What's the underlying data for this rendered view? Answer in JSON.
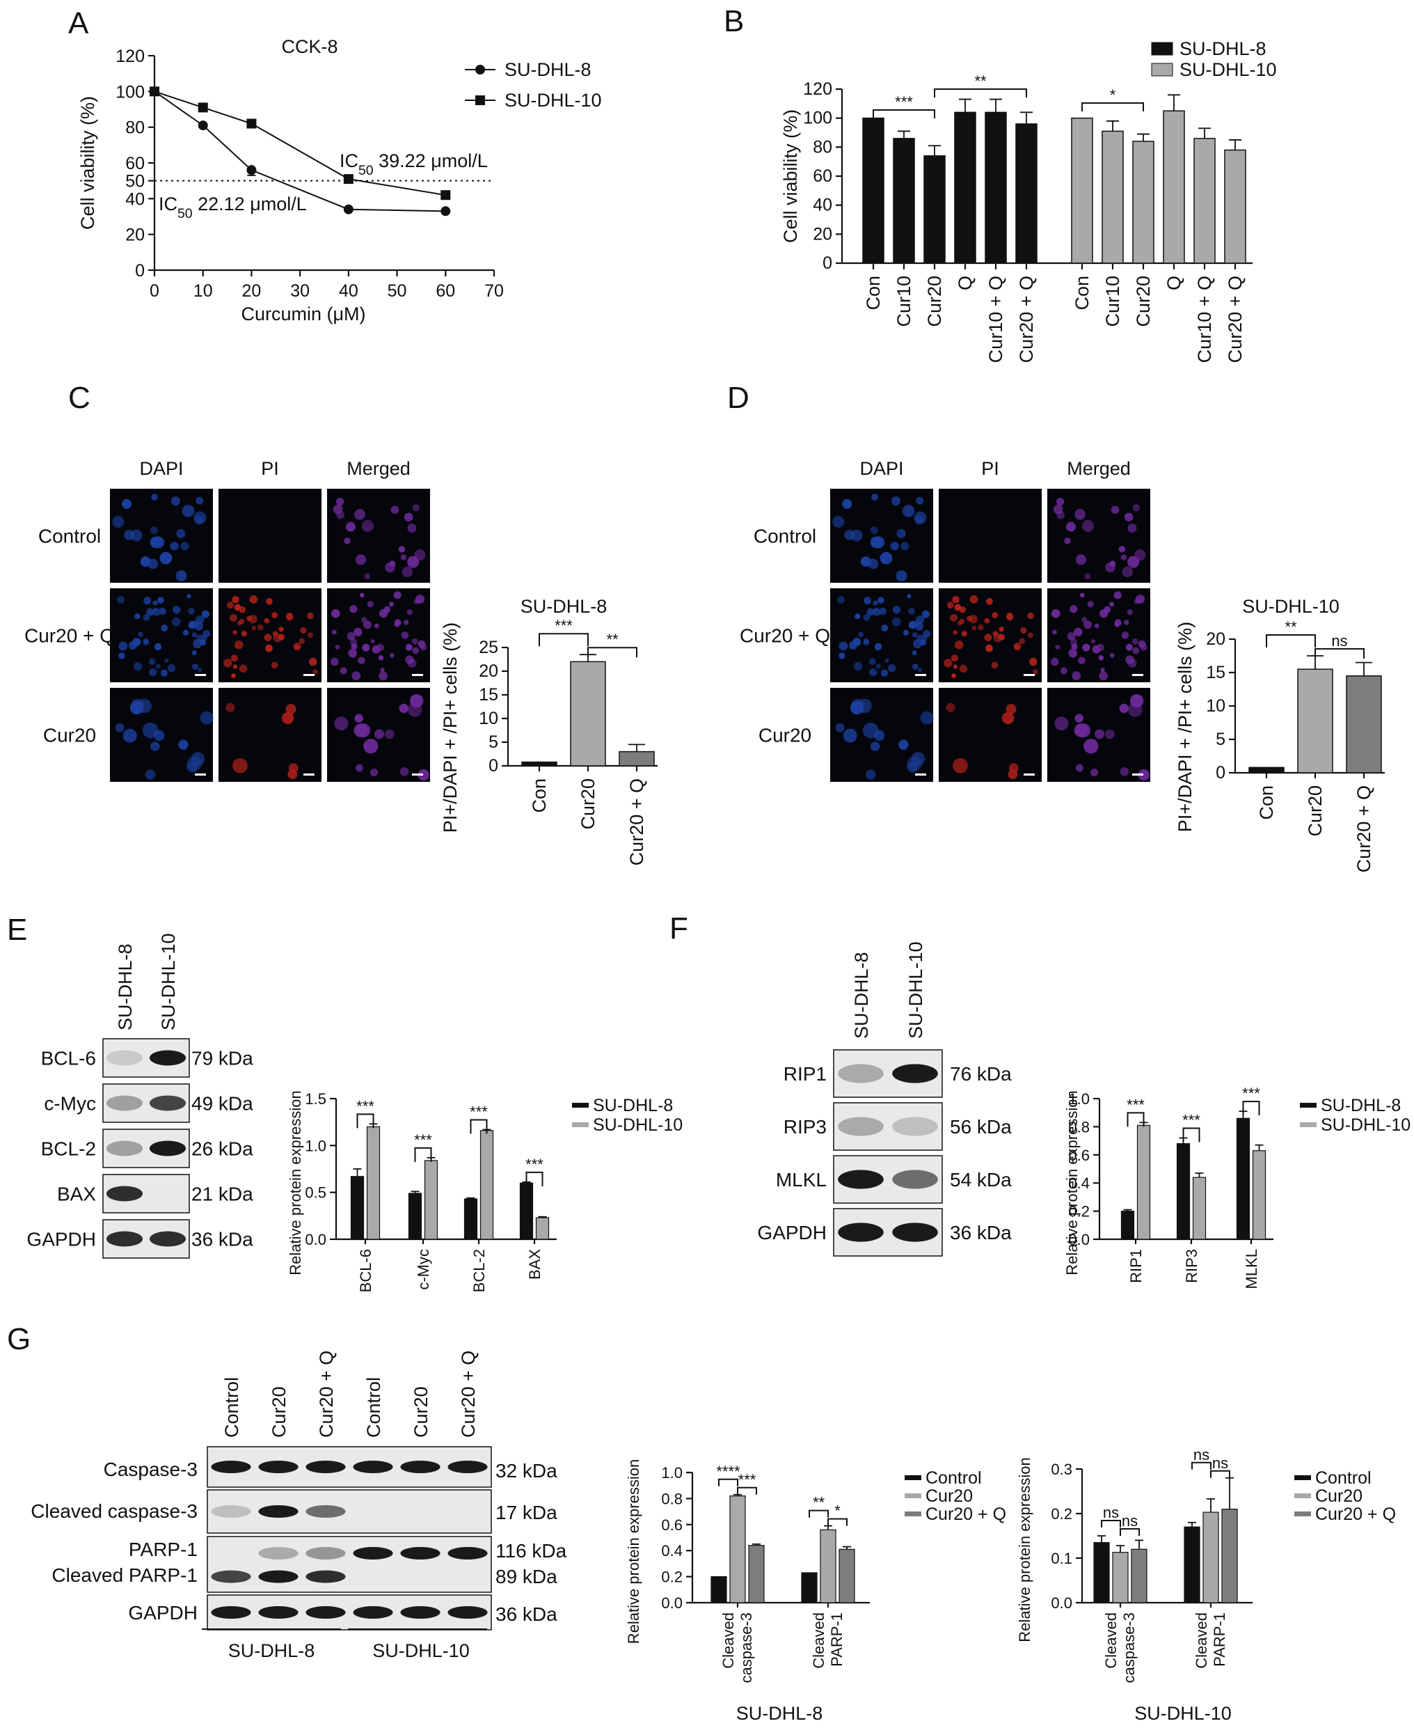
{
  "colors": {
    "black_bar": "#111111",
    "light_gray_bar": "#a9a9a9",
    "mid_gray_bar": "#7d7d7d",
    "dapi_blue": "#1b3f9e",
    "pi_red": "#b4221a",
    "merged_purple": "#6d2a9a",
    "blot_band": "#1a1a1a"
  },
  "panels": {
    "A": {
      "letter": "A",
      "chart_data": {
        "type": "line",
        "title": "CCK-8",
        "xlabel": "Curcumin (μM)",
        "ylabel": "Cell viability (%)",
        "xticks": [
          "0",
          "10",
          "20",
          "30",
          "40",
          "50",
          "60",
          "70"
        ],
        "yticks": [
          "0",
          "20",
          "40",
          "50",
          "60",
          "80",
          "100",
          "120"
        ],
        "xlim": [
          0,
          70
        ],
        "ylim": [
          0,
          120
        ],
        "reference_line_y": 50,
        "series": [
          {
            "name": "SU-DHL-8",
            "marker": "circle",
            "x": [
              0,
              10,
              20,
              40,
              60
            ],
            "y": [
              100,
              81,
              56,
              34,
              33
            ],
            "err": [
              0,
              1,
              3,
              1,
              1
            ]
          },
          {
            "name": "SU-DHL-10",
            "marker": "square",
            "x": [
              0,
              10,
              20,
              40,
              60
            ],
            "y": [
              100,
              91,
              82,
              51,
              42
            ],
            "err": [
              0,
              1,
              1,
              2,
              1
            ]
          }
        ],
        "annotations": [
          {
            "prefix": "IC",
            "sub": "50",
            "text": " 39.22 μmol/L"
          },
          {
            "prefix": "IC",
            "sub": "50",
            "text": " 22.12 μmol/L"
          }
        ]
      }
    },
    "B": {
      "letter": "B",
      "chart_data": {
        "type": "bar",
        "ylabel": "Cell viability (%)",
        "yticks": [
          "0",
          "20",
          "40",
          "60",
          "80",
          "100",
          "120"
        ],
        "ylim": [
          0,
          120
        ],
        "legend": [
          "SU-DHL-8",
          "SU-DHL-10"
        ],
        "categories": [
          "Con",
          "Cur10",
          "Cur20",
          "Q",
          "Cur10 + Q",
          "Cur20 + Q",
          "Con",
          "Cur10",
          "Cur20",
          "Q",
          "Cur10 + Q",
          "Cur20 + Q"
        ],
        "values": [
          100,
          86,
          74,
          104,
          104,
          96,
          100,
          91,
          84,
          105,
          86,
          78
        ],
        "errors": [
          0,
          5,
          7,
          9,
          9,
          8,
          0,
          7,
          5,
          11,
          7,
          7
        ],
        "series_index": [
          0,
          0,
          0,
          0,
          0,
          0,
          1,
          1,
          1,
          1,
          1,
          1
        ],
        "significance": [
          {
            "from": 0,
            "to": 2,
            "label": "***"
          },
          {
            "from": 2,
            "to": 5,
            "label": "**"
          },
          {
            "from": 6,
            "to": 8,
            "label": "*"
          }
        ]
      }
    },
    "C": {
      "letter": "C",
      "columns": [
        "DAPI",
        "PI",
        "Merged"
      ],
      "rows": [
        "Control",
        "Cur20 + Q",
        "Cur20"
      ],
      "chart_data": {
        "type": "bar",
        "title": "SU-DHL-8",
        "ylabel": "PI+/DAPI + /PI+ cells (%)",
        "yticks": [
          "0",
          "5",
          "10",
          "15",
          "20",
          "25"
        ],
        "ylim": [
          0,
          25
        ],
        "categories": [
          "Con",
          "Cur20",
          "Cur20 + Q"
        ],
        "values": [
          0.8,
          22,
          3
        ],
        "errors": [
          0,
          1.5,
          1.5
        ],
        "significance": [
          {
            "from": 0,
            "to": 1,
            "label": "***"
          },
          {
            "from": 1,
            "to": 2,
            "label": "**"
          }
        ]
      }
    },
    "D": {
      "letter": "D",
      "columns": [
        "DAPI",
        "PI",
        "Merged"
      ],
      "rows": [
        "Control",
        "Cur20 + Q",
        "Cur20"
      ],
      "chart_data": {
        "type": "bar",
        "title": "SU-DHL-10",
        "ylabel": "PI+/DAPI + /PI+ cells (%)",
        "yticks": [
          "0",
          "5",
          "10",
          "15",
          "20"
        ],
        "ylim": [
          0,
          20
        ],
        "categories": [
          "Con",
          "Cur20",
          "Cur20 + Q"
        ],
        "values": [
          0.8,
          15.5,
          14.5
        ],
        "errors": [
          0,
          2,
          2
        ],
        "significance": [
          {
            "from": 0,
            "to": 1,
            "label": "**"
          },
          {
            "from": 1,
            "to": 2,
            "label": "ns"
          }
        ]
      }
    },
    "E": {
      "letter": "E",
      "lanes": [
        "SU-DHL-8",
        "SU-DHL-10"
      ],
      "blots": [
        {
          "name": "BCL-6",
          "kda": "79 kDa",
          "band": [
            0.15,
            1.0
          ]
        },
        {
          "name": "c-Myc",
          "kda": "49 kDa",
          "band": [
            0.35,
            0.8
          ]
        },
        {
          "name": "BCL-2",
          "kda": "26 kDa",
          "band": [
            0.35,
            1.0
          ]
        },
        {
          "name": "BAX",
          "kda": "21 kDa",
          "band": [
            0.9,
            0.0
          ]
        },
        {
          "name": "GAPDH",
          "kda": "36 kDa",
          "band": [
            0.9,
            0.9
          ]
        }
      ],
      "chart_data": {
        "type": "bar",
        "ylabel": "Relative protein expression",
        "yticks": [
          "0.0",
          "0.5",
          "1.0",
          "1.5"
        ],
        "ylim": [
          0,
          1.5
        ],
        "categories": [
          "BCL-6",
          "c-Myc",
          "BCL-2",
          "BAX"
        ],
        "series": [
          {
            "name": "SU-DHL-8",
            "values": [
              0.67,
              0.49,
              0.43,
              0.6
            ],
            "errors": [
              0.08,
              0.02,
              0.01,
              0.01
            ]
          },
          {
            "name": "SU-DHL-10",
            "values": [
              1.2,
              0.84,
              1.16,
              0.23
            ],
            "errors": [
              0.03,
              0.03,
              0.01,
              0.01
            ]
          }
        ],
        "significance": [
          "***",
          "***",
          "***",
          "***"
        ]
      }
    },
    "F": {
      "letter": "F",
      "lanes": [
        "SU-DHL-8",
        "SU-DHL-10"
      ],
      "blots": [
        {
          "name": "RIP1",
          "kda": "76 kDa",
          "band": [
            0.3,
            1.0
          ]
        },
        {
          "name": "RIP3",
          "kda": "56 kDa",
          "band": [
            0.3,
            0.2
          ]
        },
        {
          "name": "MLKL",
          "kda": "54 kDa",
          "band": [
            1.0,
            0.6
          ]
        },
        {
          "name": "GAPDH",
          "kda": "36 kDa",
          "band": [
            1.0,
            1.0
          ]
        }
      ],
      "chart_data": {
        "type": "bar",
        "ylabel": "Relative protein expression",
        "yticks": [
          "0.0",
          "0.2",
          "0.4",
          "0.6",
          "0.8",
          "1.0"
        ],
        "ylim": [
          0,
          1.0
        ],
        "categories": [
          "RIP1",
          "RIP3",
          "MLKL"
        ],
        "series": [
          {
            "name": "SU-DHL-8",
            "values": [
              0.2,
              0.68,
              0.86
            ],
            "errors": [
              0.01,
              0.04,
              0.05
            ]
          },
          {
            "name": "SU-DHL-10",
            "values": [
              0.81,
              0.44,
              0.63
            ],
            "errors": [
              0.02,
              0.03,
              0.04
            ]
          }
        ],
        "significance": [
          "***",
          "***",
          "***"
        ]
      }
    },
    "G": {
      "letter": "G",
      "lanes": [
        "Control",
        "Cur20",
        "Cur20 + Q",
        "Control",
        "Cur20",
        "Cur20 + Q"
      ],
      "groups": [
        "SU-DHL-8",
        "SU-DHL-10"
      ],
      "blots": [
        {
          "name": "Caspase-3",
          "kda": "32 kDa",
          "band": [
            1,
            1,
            1,
            1,
            1,
            1
          ]
        },
        {
          "name": "Cleaved caspase-3",
          "kda": "17 kDa",
          "band": [
            0.2,
            1,
            0.6,
            0,
            0,
            0
          ]
        },
        {
          "name": "PARP-1",
          "kda": "116 kDa",
          "band": [
            0,
            0.3,
            0.4,
            1,
            1,
            1
          ]
        },
        {
          "name": "Cleaved PARP-1",
          "kda": "89 kDa",
          "band": [
            0.8,
            1,
            0.9,
            0,
            0,
            0
          ]
        },
        {
          "name": "GAPDH",
          "kda": "36 kDa",
          "band": [
            1,
            1,
            1,
            1,
            1,
            1
          ]
        }
      ],
      "charts": [
        {
          "chart_data": {
            "type": "bar",
            "title": "SU-DHL-8",
            "ylabel": "Relative protein expression",
            "yticks": [
              "0.0",
              "0.2",
              "0.4",
              "0.6",
              "0.8",
              "1.0"
            ],
            "ylim": [
              0,
              1.0
            ],
            "categories": [
              "Cleaved caspase-3",
              "Cleaved PARP-1"
            ],
            "category_lines": [
              [
                "Cleaved",
                "caspase-3"
              ],
              [
                "Cleaved",
                "PARP-1"
              ]
            ],
            "series": [
              {
                "name": "Control",
                "values": [
                  0.2,
                  0.23
                ],
                "errors": [
                  0,
                  0
                ]
              },
              {
                "name": "Cur20",
                "values": [
                  0.82,
                  0.56
                ],
                "errors": [
                  0.01,
                  0.03
                ]
              },
              {
                "name": "Cur20 + Q",
                "values": [
                  0.44,
                  0.41
                ],
                "errors": [
                  0.01,
                  0.02
                ]
              }
            ],
            "significance": [
              {
                "group": 0,
                "from": 0,
                "to": 1,
                "label": "****"
              },
              {
                "group": 0,
                "from": 1,
                "to": 2,
                "label": "***"
              },
              {
                "group": 1,
                "from": 0,
                "to": 1,
                "label": "**"
              },
              {
                "group": 1,
                "from": 1,
                "to": 2,
                "label": "*"
              }
            ]
          }
        },
        {
          "chart_data": {
            "type": "bar",
            "title": "SU-DHL-10",
            "ylabel": "Relative protein expression",
            "yticks": [
              "0.0",
              "0.1",
              "0.2",
              "0.3"
            ],
            "ylim": [
              0,
              0.3
            ],
            "categories": [
              "Cleaved caspase-3",
              "Cleaved PARP-1"
            ],
            "category_lines": [
              [
                "Cleaved",
                "caspase-3"
              ],
              [
                "Cleaved",
                "PARP-1"
              ]
            ],
            "series": [
              {
                "name": "Control",
                "values": [
                  0.135,
                  0.17
                ],
                "errors": [
                  0.015,
                  0.01
                ]
              },
              {
                "name": "Cur20",
                "values": [
                  0.113,
                  0.203
                ],
                "errors": [
                  0.015,
                  0.03
                ]
              },
              {
                "name": "Cur20 + Q",
                "values": [
                  0.12,
                  0.21
                ],
                "errors": [
                  0.02,
                  0.07
                ]
              }
            ],
            "significance": [
              {
                "group": 0,
                "from": 0,
                "to": 1,
                "label": "ns"
              },
              {
                "group": 0,
                "from": 1,
                "to": 2,
                "label": "ns"
              },
              {
                "group": 1,
                "from": 0,
                "to": 1,
                "label": "ns"
              },
              {
                "group": 1,
                "from": 1,
                "to": 2,
                "label": "ns"
              }
            ]
          }
        }
      ]
    }
  }
}
